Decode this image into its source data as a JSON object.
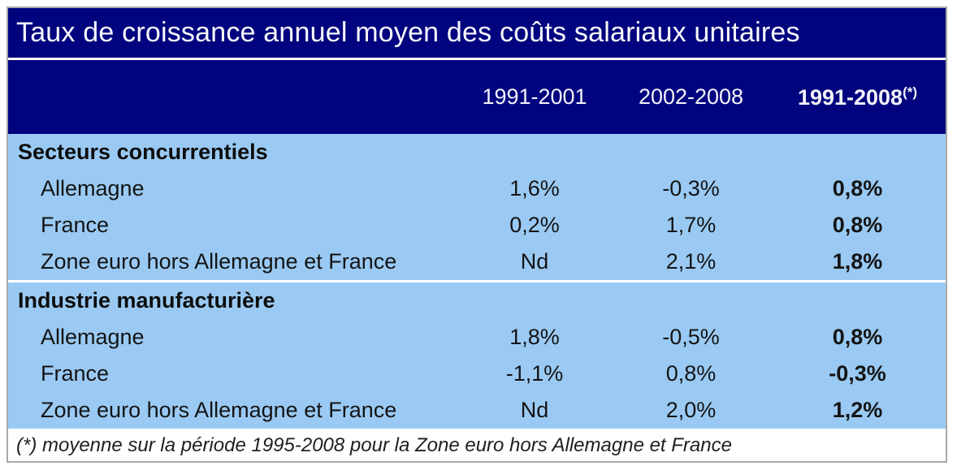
{
  "chart_data": {
    "type": "table",
    "title": "Taux de croissance annuel moyen des coûts salariaux unitaires",
    "columns": [
      "1991-2001",
      "2002-2008",
      "1991-2008"
    ],
    "column3_superscript": "(*)",
    "sections": [
      {
        "label": "Secteurs concurrentiels",
        "rows": [
          {
            "label": "Allemagne",
            "values": [
              "1,6%",
              "-0,3%",
              "0,8%"
            ]
          },
          {
            "label": "France",
            "values": [
              "0,2%",
              "1,7%",
              "0,8%"
            ]
          },
          {
            "label": "Zone euro hors Allemagne et France",
            "values": [
              "Nd",
              "2,1%",
              "1,8%"
            ]
          }
        ]
      },
      {
        "label": "Industrie manufacturière",
        "rows": [
          {
            "label": "Allemagne",
            "values": [
              "1,8%",
              "-0,5%",
              "0,8%"
            ]
          },
          {
            "label": "France",
            "values": [
              "-1,1%",
              "0,8%",
              "-0,3%"
            ]
          },
          {
            "label": "Zone euro hors Allemagne et France",
            "values": [
              "Nd",
              "2,0%",
              "1,2%"
            ]
          }
        ]
      }
    ],
    "footnote": "(*) moyenne sur la période 1995-2008 pour la Zone euro hors Allemagne et France",
    "layout": {
      "value_columns_bold": [
        false,
        false,
        true
      ],
      "na_text": "Nd"
    }
  },
  "colors": {
    "header_bg": "#01047e",
    "header_text": "#ffffff",
    "body_bg": "#9acaf3",
    "body_text": "#141414",
    "separator": "#ffffff",
    "border": "#a9a9a9"
  }
}
